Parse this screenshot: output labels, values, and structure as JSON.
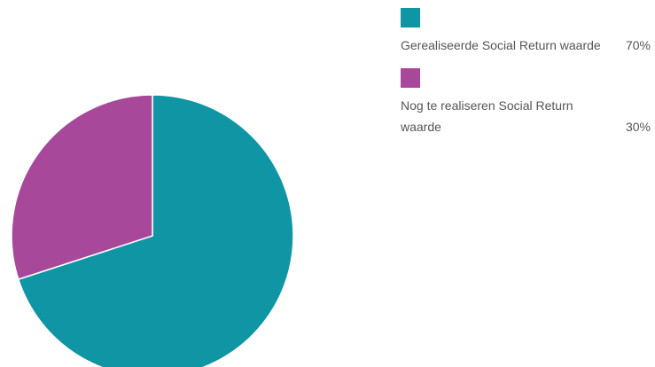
{
  "chart_data": {
    "type": "pie",
    "legend_position": "right",
    "categories": [
      "Gerealiseerde Social Return waarde",
      "Nog te realiseren Social Return waarde"
    ],
    "values": [
      70,
      30
    ],
    "labels": [
      "70%",
      "30%"
    ],
    "colors": [
      "#0f95a3",
      "#a8489a"
    ]
  }
}
